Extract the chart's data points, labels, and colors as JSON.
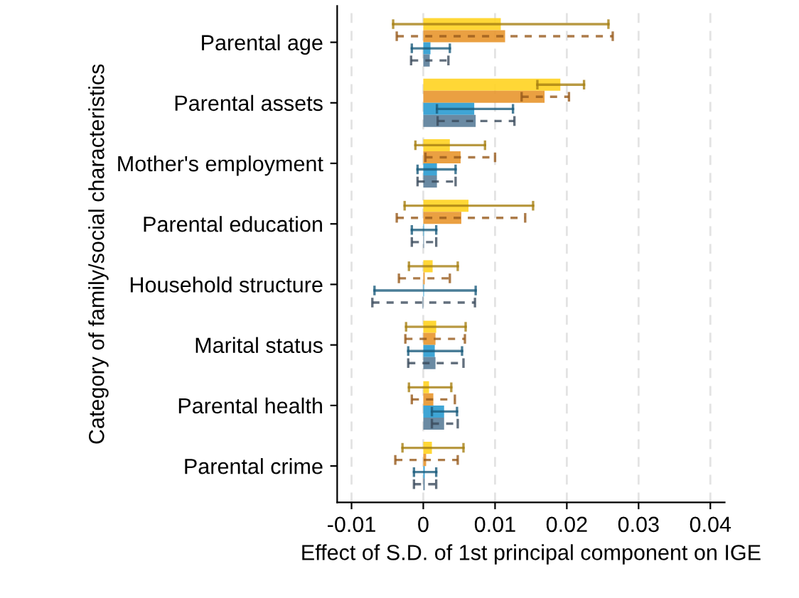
{
  "chart_data": {
    "type": "bar",
    "orientation": "horizontal",
    "ylabel": "Category of family/social characteristics",
    "xlabel": "Effect of S.D. of 1st principal component on IGE",
    "categories": [
      "Parental age",
      "Parental assets",
      "Mother's employment",
      "Parental education",
      "Household structure",
      "Marital status",
      "Parental health",
      "Parental crime"
    ],
    "series": [
      {
        "color": "#ffd320",
        "line_style": "solid",
        "values": [
          0.0108,
          0.0191,
          0.0037,
          0.0063,
          0.0013,
          0.0018,
          0.0008,
          0.0012
        ],
        "errors": [
          [
            -0.0042,
            0.0258
          ],
          [
            0.0159,
            0.0224
          ],
          [
            -0.0011,
            0.0086
          ],
          [
            -0.0026,
            0.0153
          ],
          [
            -0.002,
            0.0048
          ],
          [
            -0.0024,
            0.0059
          ],
          [
            -0.002,
            0.0039
          ],
          [
            -0.0029,
            0.0056
          ]
        ]
      },
      {
        "color": "#e8962e",
        "line_style": "dashed",
        "values": [
          0.0114,
          0.0169,
          0.0052,
          0.0053,
          0.0002,
          0.0017,
          0.0014,
          0.0004
        ],
        "errors": [
          [
            -0.0037,
            0.0264
          ],
          [
            0.0137,
            0.0203
          ],
          [
            0.0003,
            0.01
          ],
          [
            -0.0037,
            0.0142
          ],
          [
            -0.0034,
            0.0037
          ],
          [
            -0.0025,
            0.0058
          ],
          [
            -0.0016,
            0.0044
          ],
          [
            -0.0039,
            0.0048
          ]
        ]
      },
      {
        "color": "#2a9bd0",
        "line_style": "solid",
        "values": [
          0.001,
          0.0071,
          0.0019,
          0.0001,
          0.0001,
          0.0016,
          0.0029,
          0.0002
        ],
        "errors": [
          [
            -0.0016,
            0.0037
          ],
          [
            0.0019,
            0.0125
          ],
          [
            -0.0008,
            0.0045
          ],
          [
            -0.0016,
            0.0018
          ],
          [
            -0.0068,
            0.0073
          ],
          [
            -0.0021,
            0.0054
          ],
          [
            0.0012,
            0.0047
          ],
          [
            -0.0013,
            0.0018
          ]
        ]
      },
      {
        "color": "#5a7d99",
        "line_style": "dashed",
        "values": [
          0.0009,
          0.0073,
          0.0019,
          0.0001,
          -0.0001,
          0.0017,
          0.0029,
          0.0002
        ],
        "errors": [
          [
            -0.0017,
            0.0035
          ],
          [
            0.002,
            0.0127
          ],
          [
            -0.0008,
            0.0045
          ],
          [
            -0.0016,
            0.0018
          ],
          [
            -0.0071,
            0.0072
          ],
          [
            -0.0021,
            0.0056
          ],
          [
            0.0012,
            0.0048
          ],
          [
            -0.0013,
            0.0018
          ]
        ]
      }
    ],
    "xlim": [
      -0.012,
      0.042
    ],
    "xticks": [
      -0.01,
      0,
      0.01,
      0.02,
      0.03,
      0.04
    ],
    "grid": "x",
    "legend": false
  }
}
